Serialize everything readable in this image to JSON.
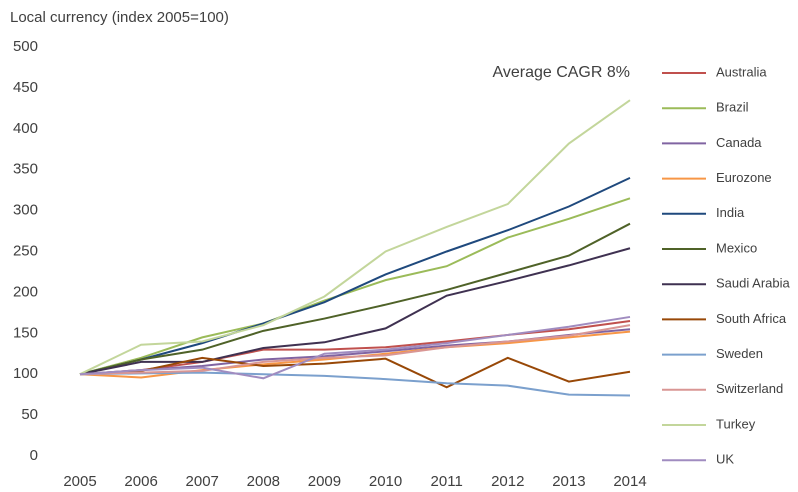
{
  "chart_data": {
    "type": "line",
    "title": "Local currency (index 2005=100)",
    "annotation": "Average CAGR 8%",
    "categories": [
      "2005",
      "2006",
      "2007",
      "2008",
      "2009",
      "2010",
      "2011",
      "2012",
      "2013",
      "2014"
    ],
    "ylim": [
      0,
      500
    ],
    "yticks": [
      0,
      50,
      100,
      150,
      200,
      250,
      300,
      350,
      400,
      450,
      500
    ],
    "grid": false,
    "legend": "right",
    "series": [
      {
        "name": "Australia",
        "color": "#c0504d",
        "values": [
          100,
          105,
          115,
          130,
          130,
          133,
          140,
          148,
          155,
          165
        ]
      },
      {
        "name": "Brazil",
        "color": "#9bbb59",
        "values": [
          100,
          120,
          145,
          162,
          190,
          215,
          232,
          267,
          290,
          315
        ]
      },
      {
        "name": "Canada",
        "color": "#8064a2",
        "values": [
          100,
          105,
          110,
          118,
          122,
          128,
          135,
          140,
          148,
          155
        ]
      },
      {
        "name": "Eurozone",
        "color": "#f79646",
        "values": [
          100,
          96,
          105,
          112,
          118,
          125,
          133,
          138,
          145,
          152
        ]
      },
      {
        "name": "India",
        "color": "#1f497d",
        "values": [
          100,
          118,
          138,
          162,
          188,
          222,
          250,
          276,
          305,
          340
        ]
      },
      {
        "name": "Mexico",
        "color": "#4f6228",
        "values": [
          100,
          118,
          130,
          153,
          168,
          185,
          203,
          224,
          245,
          284
        ]
      },
      {
        "name": "Saudi Arabia",
        "color": "#3f3151",
        "values": [
          100,
          115,
          115,
          132,
          139,
          156,
          196,
          214,
          233,
          254
        ]
      },
      {
        "name": "South Africa",
        "color": "#984807",
        "values": [
          100,
          104,
          120,
          110,
          113,
          119,
          84,
          120,
          91,
          103
        ]
      },
      {
        "name": "Sweden",
        "color": "#7ba0cd",
        "values": [
          100,
          101,
          102,
          100,
          98,
          94,
          89,
          86,
          75,
          74
        ]
      },
      {
        "name": "Switzerland",
        "color": "#d99694",
        "values": [
          100,
          102,
          104,
          115,
          120,
          123,
          133,
          140,
          147,
          160
        ]
      },
      {
        "name": "Turkey",
        "color": "#c3d69b",
        "values": [
          100,
          136,
          140,
          160,
          195,
          250,
          280,
          308,
          382,
          435
        ]
      },
      {
        "name": "UK",
        "color": "#a08cc0",
        "values": [
          100,
          105,
          108,
          95,
          125,
          130,
          138,
          148,
          158,
          170
        ]
      }
    ]
  }
}
